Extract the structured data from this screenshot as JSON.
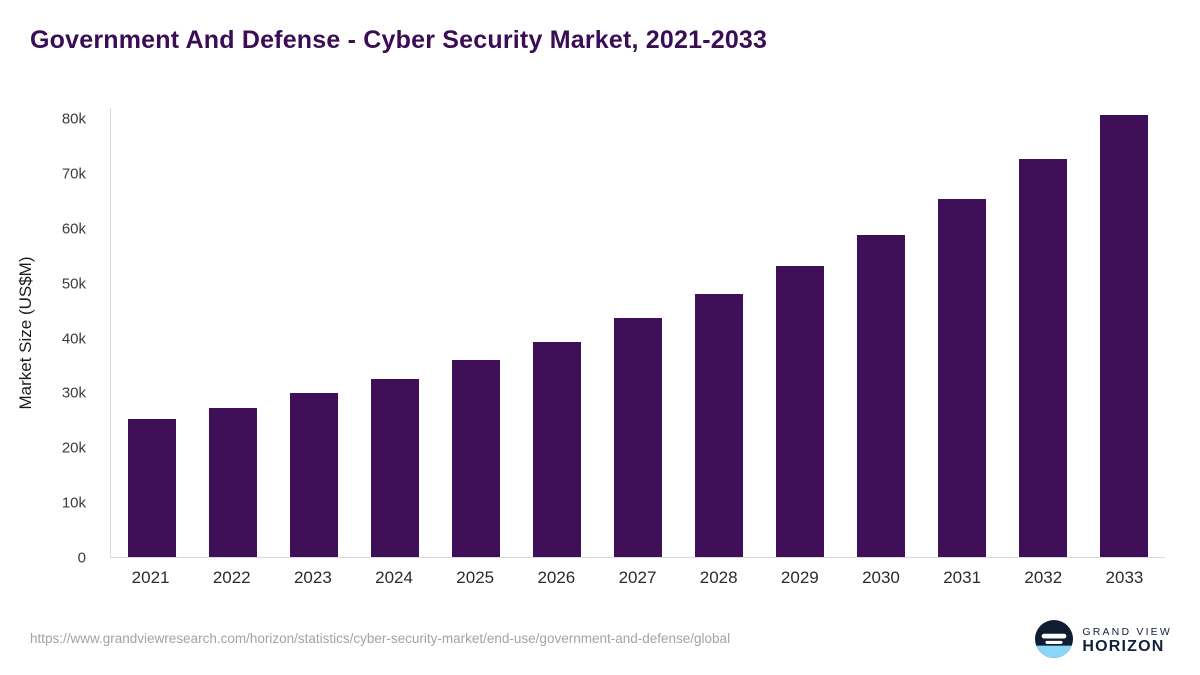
{
  "title": "Government And Defense - Cyber Security Market, 2021-2033",
  "chart_data": {
    "type": "bar",
    "title": "Government And Defense - Cyber Security Market, 2021-2033",
    "categories": [
      "2021",
      "2022",
      "2023",
      "2024",
      "2025",
      "2026",
      "2027",
      "2028",
      "2029",
      "2030",
      "2031",
      "2032",
      "2033"
    ],
    "values": [
      25200,
      27300,
      29900,
      32600,
      35900,
      39300,
      43600,
      48100,
      53200,
      58900,
      65300,
      72600,
      80700
    ],
    "xlabel": "",
    "ylabel": "Market Size (US$M)",
    "ylim": [
      0,
      82000
    ],
    "ytick_values": [
      0,
      10000,
      20000,
      30000,
      40000,
      50000,
      60000,
      70000,
      80000
    ],
    "ytick_labels": [
      "0",
      "10k",
      "20k",
      "30k",
      "40k",
      "50k",
      "60k",
      "70k",
      "80k"
    ],
    "grid": false,
    "legend": "none"
  },
  "colors": {
    "bar": "#3f1057",
    "title": "#3a0d55",
    "axis": "#d9d9d9"
  },
  "footer": {
    "source_url": "https://www.grandviewresearch.com/horizon/statistics/cyber-security-market/end-use/government-and-defense/global",
    "logo_text_top": "GRAND VIEW",
    "logo_text_bottom": "HORIZON"
  }
}
